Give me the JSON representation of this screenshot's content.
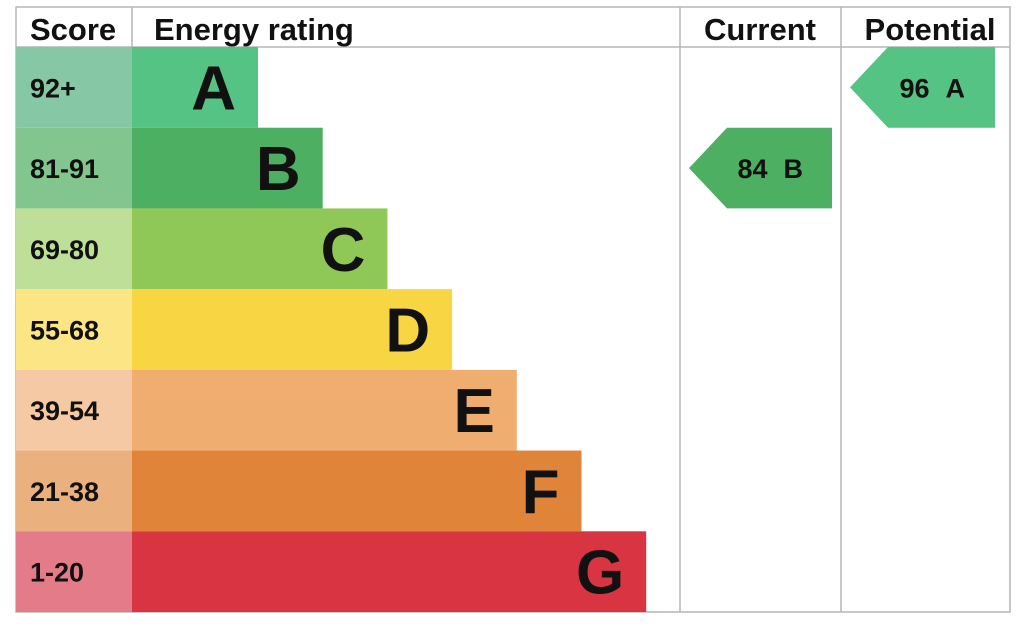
{
  "chart_data": {
    "type": "bar",
    "headers": {
      "score": "Score",
      "rating": "Energy rating",
      "current": "Current",
      "potential": "Potential"
    },
    "bands": [
      {
        "score": "92+",
        "letter": "A",
        "color": "#55c384",
        "score_color": "#86c7a5"
      },
      {
        "score": "81-91",
        "letter": "B",
        "color": "#4caf61",
        "score_color": "#83c58e"
      },
      {
        "score": "69-80",
        "letter": "C",
        "color": "#90c857",
        "score_color": "#bedf97"
      },
      {
        "score": "55-68",
        "letter": "D",
        "color": "#f7d543",
        "score_color": "#fbe585"
      },
      {
        "score": "39-54",
        "letter": "E",
        "color": "#efad70",
        "score_color": "#f4c9a3"
      },
      {
        "score": "21-38",
        "letter": "F",
        "color": "#e0843a",
        "score_color": "#eab17e"
      },
      {
        "score": "1-20",
        "letter": "G",
        "color": "#d93442",
        "score_color": "#e37b89"
      }
    ],
    "current": {
      "value": 84,
      "band": "B",
      "color": "#4caf61"
    },
    "potential": {
      "value": 96,
      "band": "A",
      "color": "#55c384"
    }
  }
}
